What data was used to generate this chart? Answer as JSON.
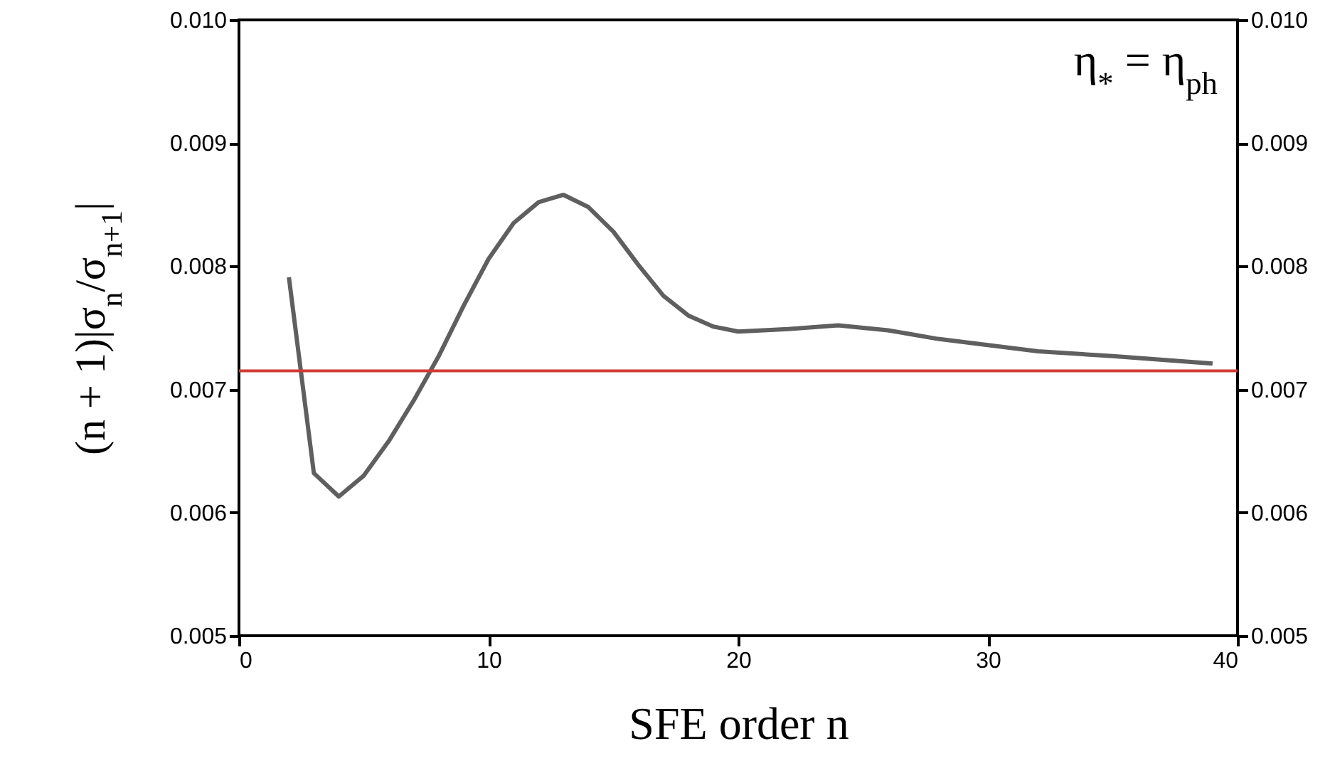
{
  "chart_data": {
    "type": "line",
    "xlabel": "SFE order n",
    "ylabel": "(n + 1)|σ$_{n}$/σ$_{n+1}$|",
    "x": [
      2,
      3,
      4,
      5,
      6,
      7,
      8,
      9,
      10,
      11,
      12,
      13,
      14,
      15,
      16,
      17,
      18,
      19,
      20,
      22,
      24,
      26,
      28,
      30,
      32,
      35,
      39
    ],
    "series": [
      {
        "color": "#5f5f5f",
        "values": [
          0.00791,
          0.00632,
          0.00613,
          0.0063,
          0.00658,
          0.00691,
          0.00727,
          0.00768,
          0.00806,
          0.00835,
          0.00852,
          0.00858,
          0.00848,
          0.00828,
          0.00801,
          0.00776,
          0.0076,
          0.00751,
          0.00747,
          0.00749,
          0.00752,
          0.00748,
          0.00741,
          0.00736,
          0.00731,
          0.00727,
          0.00721
        ]
      }
    ],
    "xlim": [
      0,
      40
    ],
    "xticks": [
      0,
      10,
      20,
      30,
      40
    ],
    "ylim": [
      0.005,
      0.01
    ],
    "yticks": [
      0.005,
      0.006,
      0.007,
      0.008,
      0.009,
      {
        "value": 0.01,
        "label": "0.010"
      }
    ],
    "y2lim": [
      0.005,
      0.01
    ],
    "y2ticks": [
      0.005,
      0.006,
      0.007,
      0.008,
      0.009,
      {
        "value": 0.01,
        "label": "0.010"
      }
    ],
    "ref_lines": [
      {
        "axis": "y",
        "value": 0.00715,
        "color": "#d03a36"
      }
    ],
    "annotations": [
      "η$_{*}$ = η$_{ph}$"
    ],
    "grid": false,
    "marker": "none",
    "line_style": "solid"
  }
}
